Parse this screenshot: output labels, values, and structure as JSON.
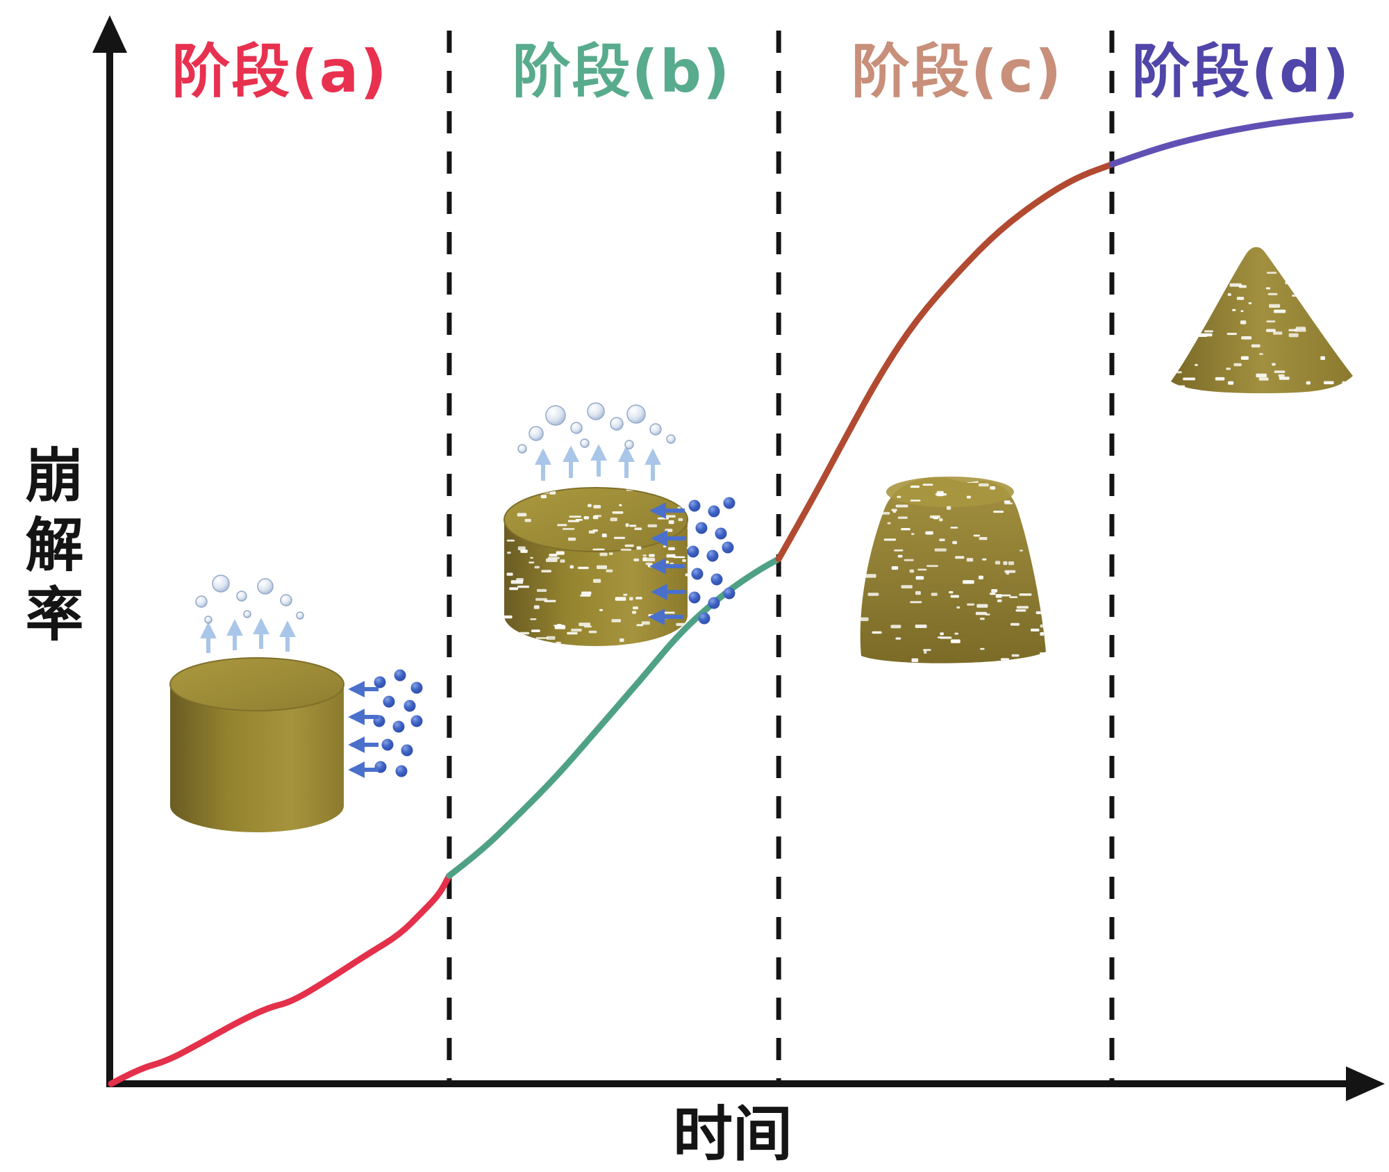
{
  "figure": {
    "y_axis_label": "崩解率",
    "x_axis_label": "时间"
  },
  "stages": [
    {
      "label": "阶段(a)",
      "label_color": "#e8314f"
    },
    {
      "label": "阶段(b)",
      "label_color": "#58ab8c"
    },
    {
      "label": "阶段(c)",
      "label_color": "#c88f7a"
    },
    {
      "label": "阶段(d)",
      "label_color": "#5045a8"
    }
  ],
  "chart_data": {
    "type": "line",
    "title": "",
    "xlabel": "时间",
    "ylabel": "崩解率",
    "x_range": [
      0,
      1
    ],
    "y_range": [
      0,
      1
    ],
    "grid": false,
    "legend": "none",
    "axis_tick_labels": "none",
    "stage_dividers_x": [
      0.272,
      0.537,
      0.805
    ],
    "series": [
      {
        "name": "阶段(a)",
        "color": "#e4304a",
        "points": [
          [
            0.0,
            0.0
          ],
          [
            0.022,
            0.015
          ],
          [
            0.045,
            0.023
          ],
          [
            0.073,
            0.042
          ],
          [
            0.101,
            0.062
          ],
          [
            0.126,
            0.077
          ],
          [
            0.145,
            0.083
          ],
          [
            0.173,
            0.104
          ],
          [
            0.207,
            0.132
          ],
          [
            0.232,
            0.151
          ],
          [
            0.251,
            0.175
          ],
          [
            0.264,
            0.192
          ],
          [
            0.272,
            0.211
          ]
        ]
      },
      {
        "name": "阶段(b)",
        "color": "#4fa186",
        "points": [
          [
            0.272,
            0.211
          ],
          [
            0.296,
            0.234
          ],
          [
            0.324,
            0.268
          ],
          [
            0.358,
            0.311
          ],
          [
            0.391,
            0.359
          ],
          [
            0.425,
            0.408
          ],
          [
            0.458,
            0.458
          ],
          [
            0.492,
            0.496
          ],
          [
            0.52,
            0.52
          ],
          [
            0.537,
            0.532
          ]
        ]
      },
      {
        "name": "阶段(c)",
        "color": "#b14a30",
        "points": [
          [
            0.537,
            0.532
          ],
          [
            0.564,
            0.592
          ],
          [
            0.592,
            0.658
          ],
          [
            0.62,
            0.722
          ],
          [
            0.648,
            0.775
          ],
          [
            0.682,
            0.824
          ],
          [
            0.715,
            0.866
          ],
          [
            0.749,
            0.898
          ],
          [
            0.777,
            0.919
          ],
          [
            0.805,
            0.932
          ]
        ]
      },
      {
        "name": "阶段(d)",
        "color": "#6150b4",
        "points": [
          [
            0.805,
            0.932
          ],
          [
            0.838,
            0.947
          ],
          [
            0.877,
            0.96
          ],
          [
            0.916,
            0.97
          ],
          [
            0.955,
            0.977
          ],
          [
            0.997,
            0.982
          ]
        ]
      }
    ]
  }
}
